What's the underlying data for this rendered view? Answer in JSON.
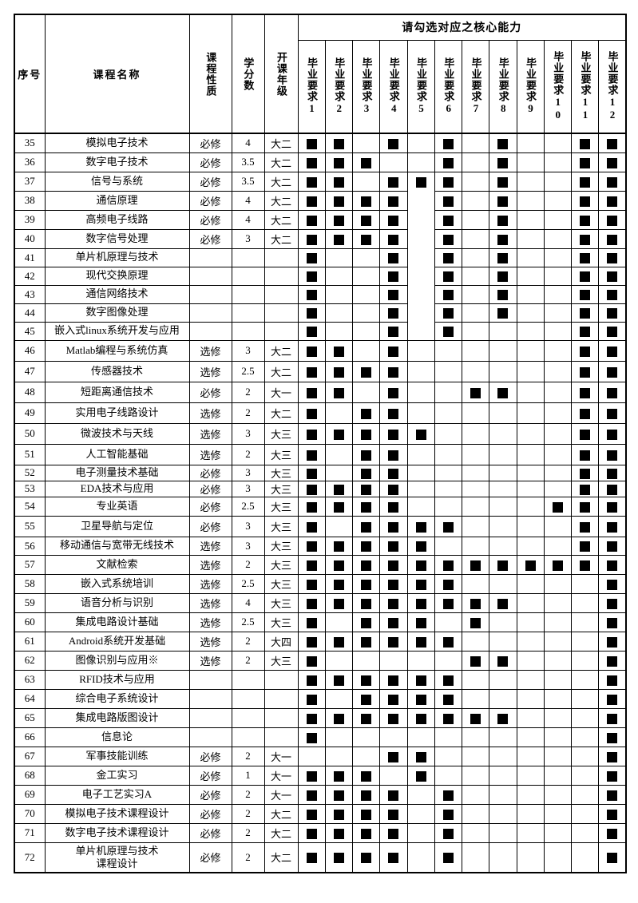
{
  "page": {
    "background": "#ffffff"
  },
  "table": {
    "header": {
      "index_label": "序号",
      "course_label": "课程名称",
      "nature_label": "课程性质",
      "credits_label": "学分数",
      "grade_label": "开课年级",
      "competency_title": "请勾选对应之核心能力",
      "req_prefix": "毕业要求",
      "req_columns": [
        "1",
        "2",
        "3",
        "4",
        "5",
        "6",
        "7",
        "8",
        "9",
        "10",
        "11",
        "12"
      ]
    },
    "colors": {
      "border": "#000000",
      "checkbox": "#000000",
      "background": "#ffffff"
    },
    "rows": [
      {
        "no": "35",
        "name": "模拟电子技术",
        "nature": "必修",
        "credits": "4",
        "grade": "大二",
        "checks": [
          1,
          2,
          4,
          6,
          8,
          11,
          12
        ]
      },
      {
        "no": "36",
        "name": "数字电子技术",
        "nature": "必修",
        "credits": "3.5",
        "grade": "大二",
        "checks": [
          1,
          2,
          3,
          6,
          8,
          11,
          12
        ]
      },
      {
        "no": "37",
        "name": "信号与系统",
        "nature": "必修",
        "credits": "3.5",
        "grade": "大二",
        "checks": [
          1,
          2,
          4,
          5,
          6,
          8,
          11,
          12
        ]
      },
      {
        "no": "38",
        "name": "通信原理",
        "nature": "必修",
        "credits": "4",
        "grade": "大二",
        "checks": [
          1,
          2,
          3,
          4,
          6,
          8,
          11,
          12
        ]
      },
      {
        "no": "39",
        "name": "高频电子线路",
        "nature": "必修",
        "credits": "4",
        "grade": "大二",
        "checks": [
          1,
          2,
          3,
          4,
          6,
          8,
          11,
          12
        ]
      },
      {
        "no": "40",
        "name": "数字信号处理",
        "nature": "必修",
        "credits": "3",
        "grade": "大二",
        "checks": [
          1,
          2,
          3,
          4,
          6,
          8,
          11,
          12
        ]
      },
      {
        "no": "41",
        "name": "单片机原理与技术",
        "nature": "",
        "credits": "",
        "grade": "",
        "checks": [
          1,
          4,
          6,
          8,
          11,
          12
        ]
      },
      {
        "no": "42",
        "name": "现代交换原理",
        "nature": "",
        "credits": "",
        "grade": "",
        "checks": [
          1,
          4,
          6,
          8,
          11,
          12
        ]
      },
      {
        "no": "43",
        "name": "通信网络技术",
        "nature": "",
        "credits": "",
        "grade": "",
        "checks": [
          1,
          4,
          6,
          8,
          11,
          12
        ]
      },
      {
        "no": "44",
        "name": "数字图像处理",
        "nature": "",
        "credits": "",
        "grade": "",
        "checks": [
          1,
          4,
          6,
          8,
          11,
          12
        ]
      },
      {
        "no": "45",
        "name": "嵌入式linux系统开发与应用",
        "nature": "",
        "credits": "",
        "grade": "",
        "checks": [
          1,
          4,
          6,
          11,
          12
        ]
      },
      {
        "no": "46",
        "name": "Matlab编程与系统仿真",
        "nature": "选修",
        "credits": "3",
        "grade": "大二",
        "checks": [
          1,
          2,
          4,
          11,
          12
        ]
      },
      {
        "no": "47",
        "name": "传感器技术",
        "nature": "选修",
        "credits": "2.5",
        "grade": "大二",
        "checks": [
          1,
          2,
          3,
          4,
          11,
          12
        ]
      },
      {
        "no": "48",
        "name": "短距离通信技术",
        "nature": "必修",
        "credits": "2",
        "grade": "大一",
        "checks": [
          1,
          2,
          4,
          7,
          8,
          11,
          12
        ]
      },
      {
        "no": "49",
        "name": "实用电子线路设计",
        "nature": "选修",
        "credits": "2",
        "grade": "大二",
        "checks": [
          1,
          3,
          4,
          11,
          12
        ]
      },
      {
        "no": "50",
        "name": "微波技术与天线",
        "nature": "选修",
        "credits": "3",
        "grade": "大三",
        "checks": [
          1,
          2,
          3,
          4,
          5,
          11,
          12
        ]
      },
      {
        "no": "51",
        "name": "人工智能基础",
        "nature": "选修",
        "credits": "2",
        "grade": "大三",
        "checks": [
          1,
          3,
          4,
          11,
          12
        ]
      },
      {
        "no": "52",
        "name": "电子测量技术基础",
        "nature": "必修",
        "credits": "3",
        "grade": "大三",
        "checks": [
          1,
          3,
          4,
          11,
          12
        ]
      },
      {
        "no": "53",
        "name": "EDA技术与应用",
        "nature": "必修",
        "credits": "3",
        "grade": "大三",
        "checks": [
          1,
          2,
          3,
          4,
          11,
          12
        ]
      },
      {
        "no": "54",
        "name": "专业英语",
        "nature": "必修",
        "credits": "2.5",
        "grade": "大三",
        "checks": [
          1,
          2,
          3,
          4,
          10,
          11,
          12
        ]
      },
      {
        "no": "55",
        "name": "卫星导航与定位",
        "nature": "必修",
        "credits": "3",
        "grade": "大三",
        "checks": [
          1,
          3,
          4,
          5,
          6,
          11,
          12
        ]
      },
      {
        "no": "56",
        "name": "移动通信与宽带无线技术",
        "nature": "选修",
        "credits": "3",
        "grade": "大三",
        "checks": [
          1,
          2,
          3,
          4,
          5,
          11,
          12
        ]
      },
      {
        "no": "57",
        "name": "文献检索",
        "nature": "选修",
        "credits": "2",
        "grade": "大三",
        "checks": [
          1,
          2,
          3,
          4,
          5,
          6,
          7,
          8,
          9,
          10,
          11,
          12
        ]
      },
      {
        "no": "58",
        "name": "嵌入式系统培训",
        "nature": "选修",
        "credits": "2.5",
        "grade": "大三",
        "checks": [
          1,
          2,
          3,
          4,
          5,
          6,
          12
        ]
      },
      {
        "no": "59",
        "name": "语音分析与识别",
        "nature": "选修",
        "credits": "4",
        "grade": "大三",
        "checks": [
          1,
          2,
          3,
          4,
          5,
          6,
          7,
          8,
          12
        ]
      },
      {
        "no": "60",
        "name": "集成电路设计基础",
        "nature": "选修",
        "credits": "2.5",
        "grade": "大三",
        "checks": [
          1,
          3,
          4,
          5,
          7,
          12
        ]
      },
      {
        "no": "61",
        "name": "Android系统开发基础",
        "nature": "选修",
        "credits": "2",
        "grade": "大四",
        "checks": [
          1,
          2,
          3,
          4,
          5,
          6,
          12
        ]
      },
      {
        "no": "62",
        "name": "图像识别与应用※",
        "nature": "选修",
        "credits": "2",
        "grade": "大三",
        "checks": [
          1,
          7,
          8,
          12
        ]
      },
      {
        "no": "63",
        "name": "RFID技术与应用",
        "nature": "",
        "credits": "",
        "grade": "",
        "checks": [
          1,
          2,
          3,
          4,
          5,
          6,
          12
        ]
      },
      {
        "no": "64",
        "name": "综合电子系统设计",
        "nature": "",
        "credits": "",
        "grade": "",
        "checks": [
          1,
          3,
          4,
          5,
          6,
          12
        ]
      },
      {
        "no": "65",
        "name": "集成电路版图设计",
        "nature": "",
        "credits": "",
        "grade": "",
        "checks": [
          1,
          2,
          3,
          4,
          5,
          6,
          7,
          8,
          12
        ]
      },
      {
        "no": "66",
        "name": "信息论",
        "nature": "",
        "credits": "",
        "grade": "",
        "checks": [
          1,
          12
        ]
      },
      {
        "no": "67",
        "name": "军事技能训练",
        "nature": "必修",
        "credits": "2",
        "grade": "大一",
        "checks": [
          4,
          5,
          12
        ]
      },
      {
        "no": "68",
        "name": "金工实习",
        "nature": "必修",
        "credits": "1",
        "grade": "大一",
        "checks": [
          1,
          2,
          3,
          5,
          12
        ]
      },
      {
        "no": "69",
        "name": "电子工艺实习A",
        "nature": "必修",
        "credits": "2",
        "grade": "大一",
        "checks": [
          1,
          2,
          3,
          4,
          6,
          12
        ]
      },
      {
        "no": "70",
        "name": "模拟电子技术课程设计",
        "nature": "必修",
        "credits": "2",
        "grade": "大二",
        "checks": [
          1,
          2,
          3,
          4,
          6,
          12
        ]
      },
      {
        "no": "71",
        "name": "数字电子技术课程设计",
        "nature": "必修",
        "credits": "2",
        "grade": "大二",
        "checks": [
          1,
          2,
          3,
          4,
          6,
          12
        ]
      },
      {
        "no": "72",
        "name": "单片机原理与技术\n课程设计",
        "nature": "必修",
        "credits": "2",
        "grade": "大二",
        "checks": [
          1,
          2,
          3,
          4,
          6,
          12
        ]
      }
    ]
  }
}
